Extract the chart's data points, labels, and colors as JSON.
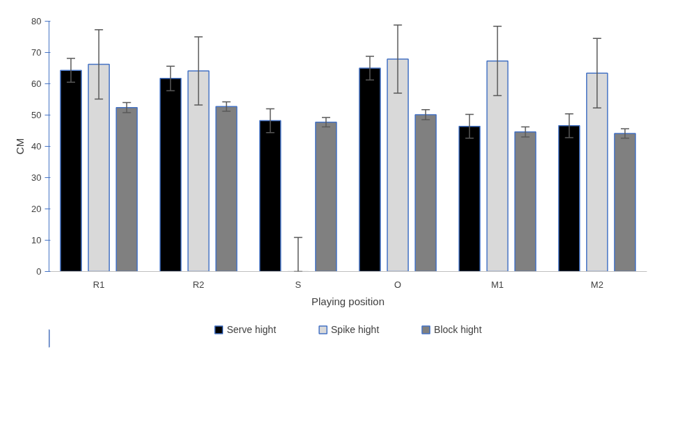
{
  "chart_data": {
    "type": "bar",
    "xlabel": "Playing position",
    "ylabel": "CM",
    "categories": [
      "R1",
      "R2",
      "S",
      "O",
      "M1",
      "M2"
    ],
    "series": [
      {
        "name": "Serve hight",
        "color": "#000000",
        "values": [
          64.3,
          61.7,
          48.2,
          65.0,
          46.4,
          46.6
        ],
        "errors": [
          3.8,
          3.9,
          3.8,
          3.8,
          3.8,
          3.8
        ]
      },
      {
        "name": "Spike hight",
        "color": "#d9d9d9",
        "values": [
          66.2,
          64.1,
          0,
          67.9,
          67.3,
          63.4
        ],
        "errors": [
          11.1,
          10.9,
          [
            0,
            10.9
          ],
          10.9,
          11.1,
          11.1
        ]
      },
      {
        "name": "Block hight",
        "color": "#808080",
        "values": [
          52.4,
          52.7,
          47.7,
          50.1,
          44.6,
          44.1
        ],
        "errors": [
          1.6,
          1.5,
          1.5,
          1.6,
          1.6,
          1.5
        ]
      }
    ],
    "ylim": [
      0,
      80
    ],
    "yticks": [
      0,
      10,
      20,
      30,
      40,
      50,
      60,
      70,
      80
    ],
    "grid": false,
    "legend": "bottom"
  }
}
